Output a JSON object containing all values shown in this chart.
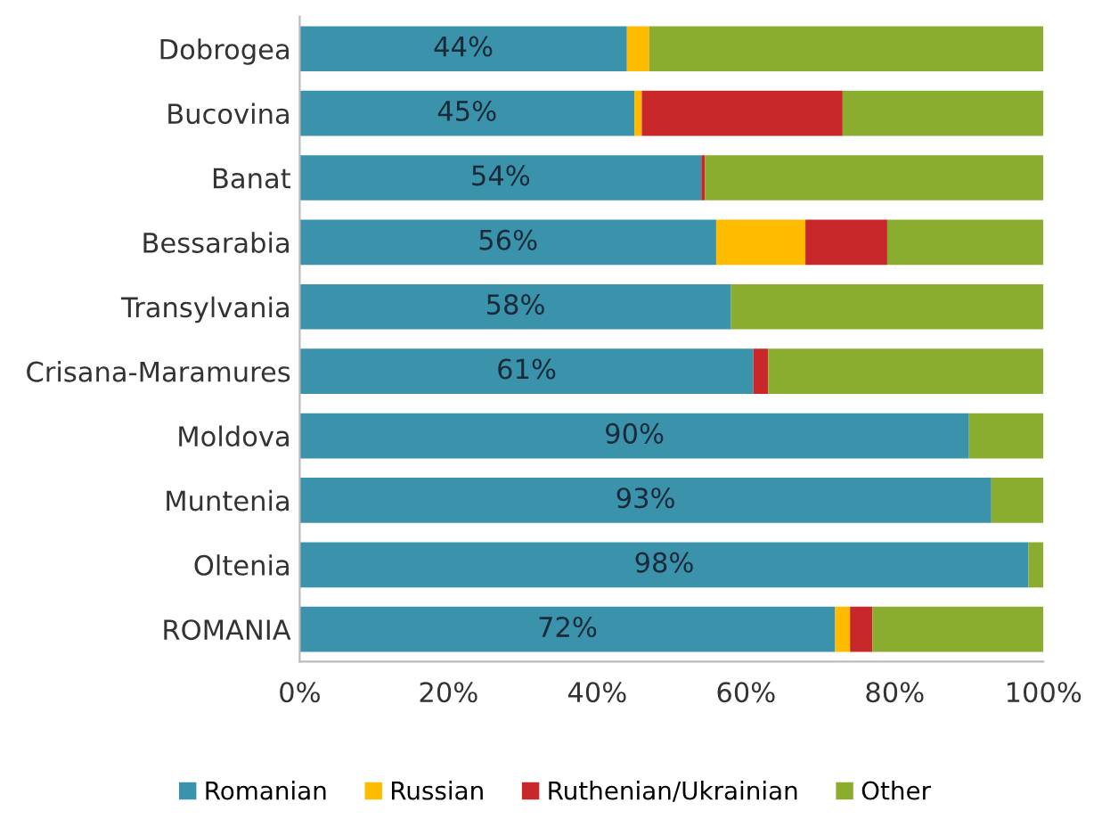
{
  "chart_data": {
    "type": "bar",
    "orientation": "horizontal",
    "stacked": true,
    "legend": "bottom",
    "grid": false,
    "categories": [
      "Dobrogea",
      "Bucovina",
      "Banat",
      "Bessarabia",
      "Transylvania",
      "Crisana-Maramures",
      "Moldova",
      "Muntenia",
      "Oltenia",
      "ROMANIA"
    ],
    "xlim": [
      0,
      100
    ],
    "xticks": [
      {
        "value": 0,
        "label": "0%"
      },
      {
        "value": 20,
        "label": "20%"
      },
      {
        "value": 40,
        "label": "40%"
      },
      {
        "value": 60,
        "label": "60%"
      },
      {
        "value": 80,
        "label": "80%"
      },
      {
        "value": 100,
        "label": "100%"
      }
    ],
    "series": [
      {
        "name": "Romanian",
        "color": "#3a93ab",
        "values": [
          44,
          45,
          54,
          56,
          58,
          61,
          90,
          93,
          98,
          72
        ],
        "value_labels": [
          "44%",
          "45%",
          "54%",
          "56%",
          "58%",
          "61%",
          "90%",
          "93%",
          "98%",
          "72%"
        ]
      },
      {
        "name": "Russian",
        "color": "#ffbb00",
        "values": [
          3,
          1,
          0,
          12,
          0,
          0,
          0,
          0,
          0,
          2
        ]
      },
      {
        "name": "Ruthenian/Ukrainian",
        "color": "#c8282a",
        "values": [
          0,
          27,
          0.5,
          11,
          0,
          2,
          0,
          0,
          0,
          3
        ]
      },
      {
        "name": "Other",
        "color": "#8aad2f",
        "values": [
          53,
          27,
          45.5,
          21,
          42,
          37,
          10,
          7,
          2,
          23
        ]
      }
    ]
  }
}
